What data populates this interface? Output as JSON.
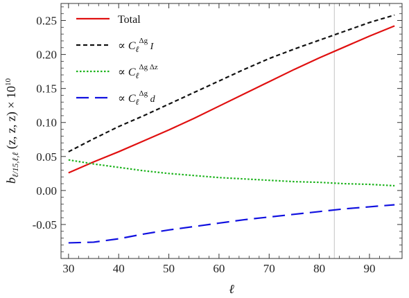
{
  "chart_data": {
    "type": "line",
    "xlabel": "ℓ",
    "ylabel": "b_{ℓ/15,ℓ,ℓ}(z, z, z) × 10^10",
    "ylabel_parts": {
      "main": "b",
      "sub": "ℓ/15,ℓ,ℓ",
      "args": " (z, z, z) × 10",
      "exp": "10"
    },
    "xlim": [
      28.5,
      96.5
    ],
    "ylim": [
      -0.1,
      0.275
    ],
    "x_ticks": [
      30,
      40,
      50,
      60,
      70,
      80,
      90
    ],
    "y_ticks": [
      -0.05,
      0.0,
      0.05,
      0.1,
      0.15,
      0.2,
      0.25
    ],
    "y_tick_labels": [
      "-0.05",
      "0.00",
      "0.05",
      "0.10",
      "0.15",
      "0.20",
      "0.25"
    ],
    "vertical_line_x": 83,
    "legend_position": "top-left",
    "x": [
      30,
      35,
      40,
      45,
      50,
      55,
      60,
      65,
      70,
      75,
      80,
      85,
      90,
      95
    ],
    "series": [
      {
        "name": "Total",
        "legend": {
          "prefix": "",
          "main": "Total",
          "sub": "",
          "sup": "",
          "suffix": ""
        },
        "color": "#e01010",
        "dash": "solid",
        "values": [
          0.026,
          0.042,
          0.057,
          0.073,
          0.089,
          0.106,
          0.124,
          0.142,
          0.16,
          0.178,
          0.195,
          0.211,
          0.227,
          0.242
        ]
      },
      {
        "name": "∝ C_ℓ^{Δg I}",
        "legend": {
          "prefix": "∝ ",
          "main": "C",
          "sub": "ℓ",
          "sup": "Δg",
          "suffix": " I"
        },
        "color": "#111111",
        "dash": "short-dash",
        "values": [
          0.057,
          0.076,
          0.094,
          0.11,
          0.127,
          0.144,
          0.161,
          0.178,
          0.194,
          0.208,
          0.221,
          0.234,
          0.247,
          0.258
        ]
      },
      {
        "name": "∝ C_ℓ^{Δg Δz}",
        "legend": {
          "prefix": "∝ ",
          "main": "C",
          "sub": "ℓ",
          "sup": "Δg Δz",
          "suffix": ""
        },
        "color": "#1db31d",
        "dash": "dotted",
        "values": [
          0.045,
          0.039,
          0.034,
          0.029,
          0.025,
          0.022,
          0.019,
          0.017,
          0.015,
          0.013,
          0.012,
          0.01,
          0.009,
          0.007
        ]
      },
      {
        "name": "∝ C_ℓ^{Δg d}",
        "legend": {
          "prefix": "∝ ",
          "main": "C",
          "sub": "ℓ",
          "sup": "Δg",
          "suffix": " d"
        },
        "color": "#1010e0",
        "dash": "long-dash",
        "values": [
          -0.077,
          -0.076,
          -0.071,
          -0.064,
          -0.058,
          -0.053,
          -0.048,
          -0.043,
          -0.039,
          -0.035,
          -0.031,
          -0.027,
          -0.024,
          -0.021
        ]
      }
    ]
  }
}
